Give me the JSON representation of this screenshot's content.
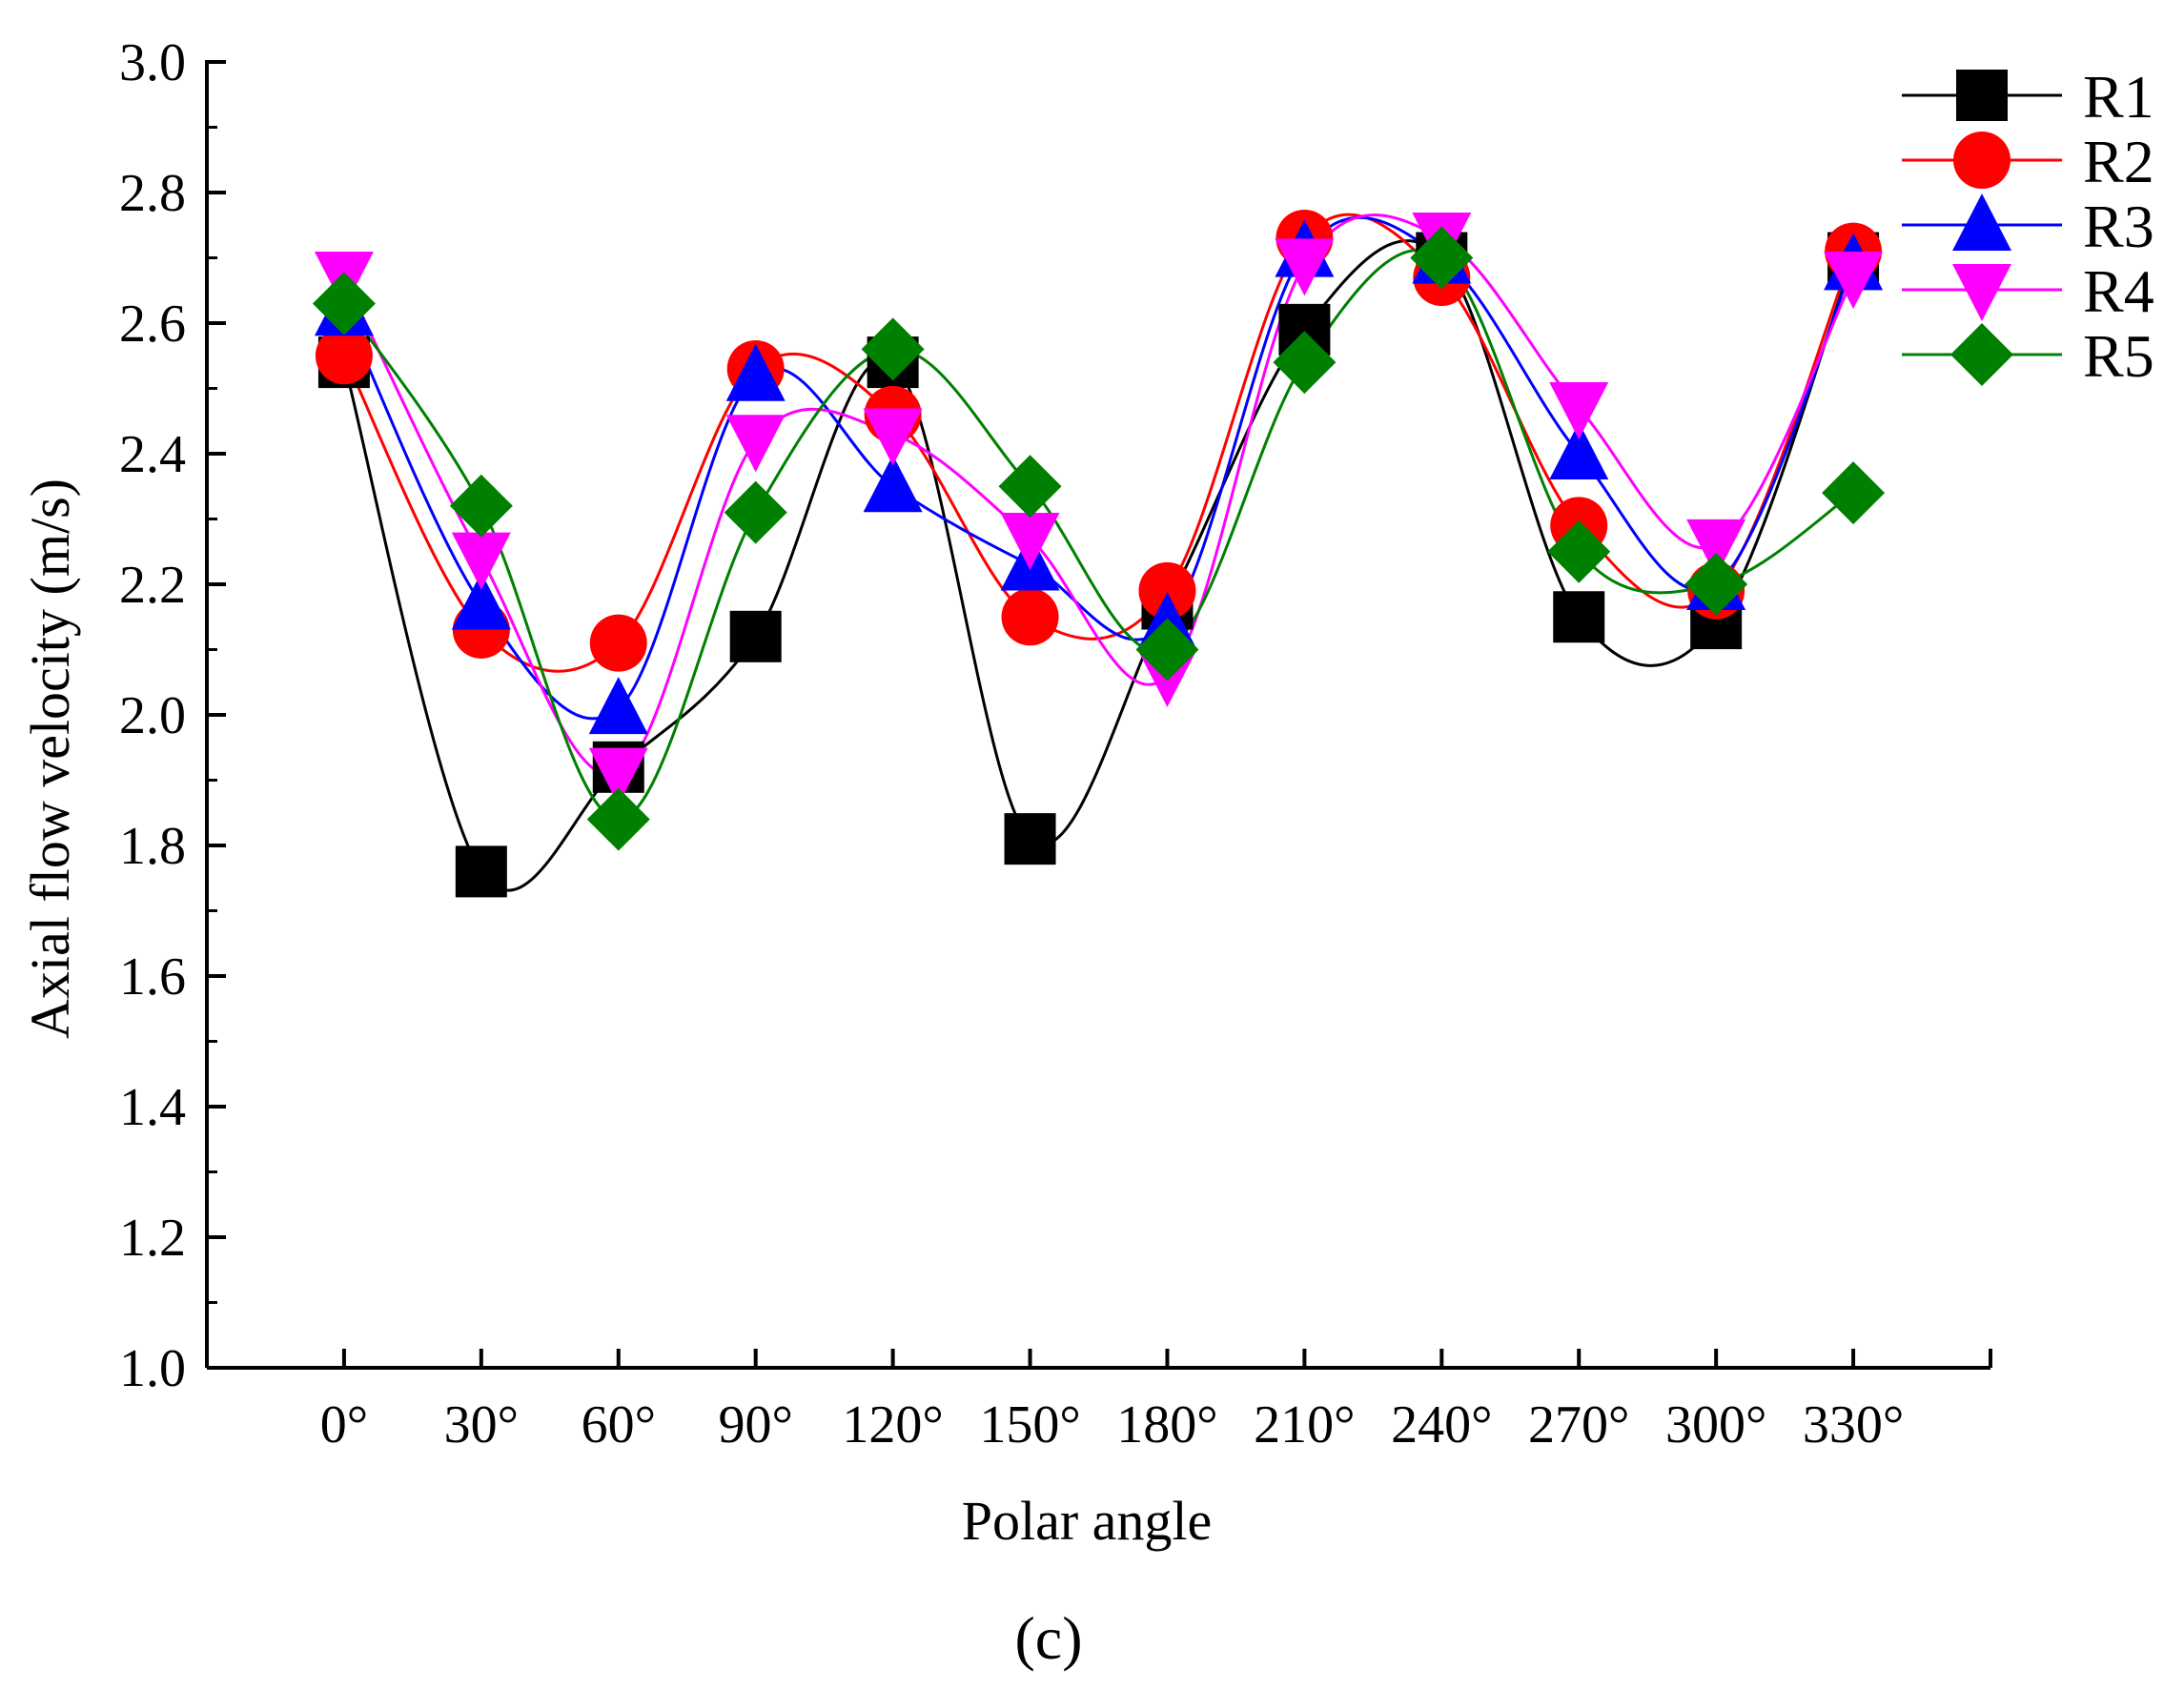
{
  "chart_data": {
    "type": "line",
    "title": "",
    "xlabel": "Polar angle",
    "ylabel": "Axial flow velocity (m/s)",
    "panel_label": "(c)",
    "categories": [
      "0°",
      "30°",
      "60°",
      "90°",
      "120°",
      "150°",
      "180°",
      "210°",
      "240°",
      "270°",
      "300°",
      "330°"
    ],
    "x": [
      0,
      30,
      60,
      90,
      120,
      150,
      180,
      210,
      240,
      270,
      300,
      330
    ],
    "xlim": [
      -30,
      360
    ],
    "ylim": [
      1.0,
      3.0
    ],
    "yticks": [
      "1.0",
      "1.2",
      "1.4",
      "1.6",
      "1.8",
      "2.0",
      "2.2",
      "2.4",
      "2.6",
      "2.8",
      "3.0"
    ],
    "yticks_values": [
      1.0,
      1.2,
      1.4,
      1.6,
      1.8,
      2.0,
      2.2,
      2.4,
      2.6,
      2.8,
      3.0
    ],
    "grid": false,
    "legend_position": "top-right",
    "series": [
      {
        "name": "R1",
        "color": "#000000",
        "marker": "square",
        "values": [
          2.54,
          1.76,
          1.92,
          2.12,
          2.54,
          1.81,
          2.17,
          2.59,
          2.7,
          2.15,
          2.14,
          2.7
        ]
      },
      {
        "name": "R2",
        "color": "#ff0000",
        "marker": "circle",
        "values": [
          2.55,
          2.13,
          2.11,
          2.53,
          2.46,
          2.15,
          2.19,
          2.73,
          2.67,
          2.29,
          2.19,
          2.71
        ]
      },
      {
        "name": "R3",
        "color": "#0000ff",
        "marker": "triangle-up",
        "values": [
          2.62,
          2.17,
          2.01,
          2.52,
          2.35,
          2.23,
          2.14,
          2.71,
          2.7,
          2.4,
          2.2,
          2.69
        ]
      },
      {
        "name": "R4",
        "color": "#ff00ff",
        "marker": "triangle-down",
        "values": [
          2.67,
          2.24,
          1.91,
          2.42,
          2.43,
          2.27,
          2.06,
          2.69,
          2.73,
          2.47,
          2.26,
          2.67
        ]
      },
      {
        "name": "R5",
        "color": "#008000",
        "marker": "diamond",
        "values": [
          2.63,
          2.32,
          1.84,
          2.31,
          2.56,
          2.35,
          2.1,
          2.54,
          2.7,
          2.25,
          2.2,
          2.34
        ]
      }
    ]
  }
}
